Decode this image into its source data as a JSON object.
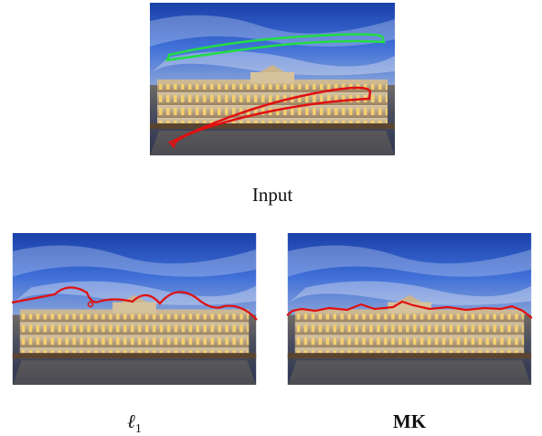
{
  "figure": {
    "panels": [
      {
        "caption": "Input"
      },
      {
        "caption": {
          "symbol": "ℓ",
          "subscript": "1"
        }
      },
      {
        "caption": "MK"
      }
    ]
  }
}
